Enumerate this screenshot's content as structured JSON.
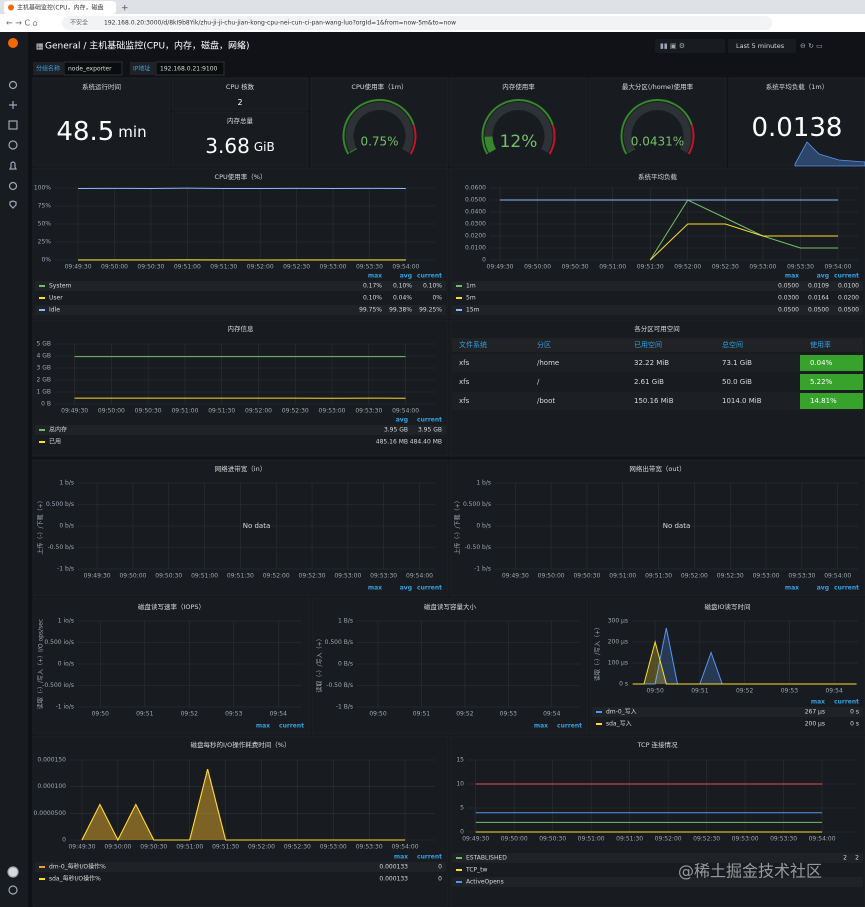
{
  "browser": {
    "tab": "主机基础监控(CPU，内存，磁盘",
    "insecure": "不安全",
    "url": "192.168.0.20:3000/d/8kI9b8Yik/zhu-ji-ji-chu-jian-kong-cpu-nei-cun-ci-pan-wang-luo?orgId=1&from=now-5m&to=now"
  },
  "nav": {
    "path": "General / 主机基础监控(CPU，内存，磁盘，网络)",
    "time_range": "Last 5 minutes"
  },
  "variables": [
    {
      "label": "分组名称",
      "value": "node_exporter"
    },
    {
      "label": "IP地址",
      "value": "192.168.0.21:9100"
    }
  ],
  "stats": [
    {
      "title": "系统运行时间",
      "value": 48.5,
      "unit": "min"
    },
    {
      "title": "CPU 核数",
      "value": 2
    },
    {
      "title": "内存总量",
      "value": 3.68,
      "unit": "GiB"
    },
    {
      "title": "系统平均负载（1m）",
      "value": 0.0138
    }
  ],
  "gauges": [
    {
      "title": "CPU使用率（1m）",
      "value": 0.75,
      "value_label": "0.75%",
      "range": [
        0,
        100
      ],
      "color": "#37872d"
    },
    {
      "title": "内存使用率",
      "value": 12,
      "value_label": "12%",
      "range": [
        0,
        100
      ],
      "color": "#37872d"
    },
    {
      "title": "最大分区(/home)使用率",
      "value": 0.0431,
      "value_label": "0.0431%",
      "range": [
        0,
        100
      ],
      "color": "#37872d"
    }
  ],
  "charts": [
    {
      "type": "line",
      "title": "CPU使用率（%）",
      "x": [
        "09:49:30",
        "09:50:00",
        "09:50:30",
        "09:51:00",
        "09:51:30",
        "09:52:00",
        "09:52:30",
        "09:53:00",
        "09:53:30",
        "09:54:00"
      ],
      "xlim": [
        "09:49:11",
        "09:54:24"
      ],
      "xticks": [
        "09:49:30",
        "09:50:00",
        "09:50:30",
        "09:51:00",
        "09:51:30",
        "09:52:00",
        "09:52:30",
        "09:53:00",
        "09:53:30",
        "09:54:00"
      ],
      "ylim": [
        0,
        100
      ],
      "yticks": [
        {
          "value": 0,
          "label": "0%"
        },
        {
          "value": 25,
          "label": "25%"
        },
        {
          "value": 50,
          "label": "50%"
        },
        {
          "value": 75,
          "label": "75%"
        },
        {
          "value": 100,
          "label": "100%"
        }
      ],
      "legend_headers": [
        "max",
        "avg",
        "current"
      ],
      "series": [
        {
          "name": "System",
          "color": "#73bf69",
          "values": [
            0.1,
            0.12,
            0.1,
            0.17,
            0.1,
            0.08,
            0.1,
            0.1,
            0.09,
            0.1
          ],
          "legend": [
            "0.17%",
            "0.10%",
            "0.10%"
          ]
        },
        {
          "name": "User",
          "color": "#fade2a",
          "values": [
            0.04,
            0.05,
            0.04,
            0.1,
            0.04,
            0.03,
            0.04,
            0.02,
            0.04,
            0
          ],
          "legend": [
            "0.10%",
            "0.04%",
            "0%"
          ]
        },
        {
          "name": "Idle",
          "color": "#8ab8ff",
          "values": [
            99.25,
            99.5,
            99.38,
            99.75,
            99.38,
            99.25,
            99.5,
            99.38,
            99.5,
            99.25
          ],
          "legend": [
            "99.75%",
            "99.38%",
            "99.25%"
          ]
        }
      ]
    },
    {
      "type": "line",
      "title": "系统平均负载",
      "x": [
        "09:49:30",
        "09:50:00",
        "09:50:30",
        "09:51:00",
        "09:51:30",
        "09:52:00",
        "09:52:30",
        "09:53:00",
        "09:53:30",
        "09:54:00"
      ],
      "xlim": [
        "09:49:22",
        "09:54:16"
      ],
      "xticks": [
        "09:49:30",
        "09:50:00",
        "09:50:30",
        "09:51:00",
        "09:51:30",
        "09:52:00",
        "09:52:30",
        "09:53:00",
        "09:53:30",
        "09:54:00"
      ],
      "ylim": [
        0,
        0.06
      ],
      "yticks": [
        0,
        {
          "value": 0.01,
          "label": "0.0100"
        },
        {
          "value": 0.02,
          "label": "0.0200"
        },
        {
          "value": 0.03,
          "label": "0.0300"
        },
        {
          "value": 0.04,
          "label": "0.0400"
        },
        {
          "value": 0.05,
          "label": "0.0500"
        },
        {
          "value": 0.06,
          "label": "0.0600"
        }
      ],
      "legend_headers": [
        "max",
        "avg",
        "current"
      ],
      "series": [
        {
          "name": "1m",
          "color": "#73bf69",
          "values": [
            null,
            null,
            null,
            null,
            0,
            0.05,
            0.035,
            0.02,
            0.01,
            0.01
          ],
          "legend": [
            "0.0500",
            "0.0109",
            "0.0100"
          ]
        },
        {
          "name": "5m",
          "color": "#fade2a",
          "values": [
            null,
            null,
            null,
            null,
            0,
            0.03,
            0.03,
            0.02,
            0.02,
            0.02
          ],
          "legend": [
            "0.0300",
            "0.0164",
            "0.0200"
          ]
        },
        {
          "name": "15m",
          "color": "#8ab8ff",
          "values": [
            0.05,
            0.05,
            0.05,
            0.05,
            0.05,
            0.05,
            0.05,
            0.05,
            0.05,
            0.05
          ],
          "legend": [
            "0.0500",
            "0.0500",
            "0.0500"
          ]
        }
      ]
    },
    {
      "type": "line",
      "title": "内存信息",
      "x": [
        "09:49:30",
        "09:50:00",
        "09:50:30",
        "09:51:00",
        "09:51:30",
        "09:52:00",
        "09:52:30",
        "09:53:00",
        "09:53:30",
        "09:54:00"
      ],
      "xlim": [
        "09:49:14",
        "09:54:24"
      ],
      "xticks": [
        "09:49:30",
        "09:50:00",
        "09:50:30",
        "09:51:00",
        "09:51:30",
        "09:52:00",
        "09:52:30",
        "09:53:00",
        "09:53:30",
        "09:54:00"
      ],
      "ylim": [
        0,
        5
      ],
      "yticks": [
        {
          "value": 0,
          "label": "0 B"
        },
        {
          "value": 1,
          "label": "1 GB"
        },
        {
          "value": 2,
          "label": "2 GB"
        },
        {
          "value": 3,
          "label": "3 GB"
        },
        {
          "value": 4,
          "label": "4 GB"
        },
        {
          "value": 5,
          "label": "5 GB"
        }
      ],
      "legend_headers": [
        "avg",
        "current"
      ],
      "series": [
        {
          "name": "总内存",
          "color": "#73bf69",
          "values": [
            3.95,
            3.95,
            3.95,
            3.95,
            3.95,
            3.95,
            3.95,
            3.95,
            3.95,
            3.95
          ],
          "legend": [
            "3.95 GB",
            "3.95 GB"
          ]
        },
        {
          "name": "已用",
          "color": "#fade2a",
          "values": [
            0.485,
            0.486,
            0.485,
            0.485,
            0.486,
            0.485,
            0.485,
            0.484,
            0.485,
            0.484
          ],
          "legend": [
            "485.16 MB",
            "484.40 MB"
          ]
        }
      ]
    },
    {
      "type": "line",
      "title": "网络进带宽（in）",
      "no_data": "No data",
      "ylabel": "上传（-）/下载（+）",
      "x": [],
      "xlim": [
        "09:49:14",
        "09:54:13"
      ],
      "xticks": [
        "09:49:30",
        "09:50:00",
        "09:50:30",
        "09:51:00",
        "09:51:30",
        "09:52:00",
        "09:52:30",
        "09:53:00",
        "09:53:30",
        "09:54:00"
      ],
      "ylim": [
        -1,
        1
      ],
      "yticks": [
        {
          "value": 1,
          "label": "1 b/s"
        },
        {
          "value": 0.5,
          "label": "0.500 b/s"
        },
        {
          "value": 0,
          "label": "0 b/s"
        },
        {
          "value": -0.5,
          "label": "-0.50 b/s"
        },
        {
          "value": -1,
          "label": "-1 b/s"
        }
      ],
      "legend_headers": [
        "max",
        "avg",
        "current"
      ],
      "series": []
    },
    {
      "type": "line",
      "title": "网络出带宽（out）",
      "no_data": "No data",
      "ylabel": "上传（-）/下载（+）",
      "x": [],
      "xlim": [
        "09:49:13",
        "09:54:17"
      ],
      "xticks": [
        "09:49:30",
        "09:50:00",
        "09:50:30",
        "09:51:00",
        "09:51:30",
        "09:52:00",
        "09:52:30",
        "09:53:00",
        "09:53:30",
        "09:54:00"
      ],
      "ylim": [
        -1,
        1
      ],
      "yticks": [
        {
          "value": 1,
          "label": "1 b/s"
        },
        {
          "value": 0.5,
          "label": "0.500 b/s"
        },
        {
          "value": 0,
          "label": "0 b/s"
        },
        {
          "value": -0.5,
          "label": "-0.50 b/s"
        },
        {
          "value": -1,
          "label": "-1 b/s"
        }
      ],
      "legend_headers": [
        "max",
        "avg",
        "current"
      ],
      "series": []
    },
    {
      "type": "line",
      "title": "磁盘读写速率（IOPS）",
      "ylabel": "读取（-）/写入（+）I/O ops/sec",
      "x": [],
      "xlim": [
        "09:49:30",
        "09:54:32"
      ],
      "xticks": [
        "09:50",
        "09:51",
        "09:52",
        "09:53",
        "09:54"
      ],
      "ylim": [
        -1,
        1
      ],
      "yticks": [
        {
          "value": 1,
          "label": "1 io/s"
        },
        {
          "value": 0.5,
          "label": "0.500 io/s"
        },
        {
          "value": 0,
          "label": "0 io/s"
        },
        {
          "value": -0.5,
          "label": "-0.500 io/s"
        },
        {
          "value": -1,
          "label": "-1 io/s"
        }
      ],
      "legend_headers": [
        "max",
        "current"
      ],
      "series": []
    },
    {
      "type": "line",
      "title": "磁盘读写容量大小",
      "ylabel": "读取（-）/写入（+）",
      "x": [],
      "xlim": [
        "09:49:31",
        "09:54:39"
      ],
      "xticks": [
        "09:50",
        "09:51",
        "09:52",
        "09:53",
        "09:54"
      ],
      "ylim": [
        -1,
        1
      ],
      "yticks": [
        {
          "value": 1,
          "label": "1 B/s"
        },
        {
          "value": 0.5,
          "label": "0.500 B/s"
        },
        {
          "value": 0,
          "label": "0 B/s"
        },
        {
          "value": -0.5,
          "label": "-0.50 B/s"
        },
        {
          "value": -1,
          "label": "-1 B/s"
        }
      ],
      "legend_headers": [
        "max",
        "current"
      ],
      "series": []
    },
    {
      "type": "line",
      "title": "磁盘IO读写时间",
      "ylabel": "读取（-）/写入（+）",
      "fill": true,
      "x": [
        "09:49:30",
        "09:49:45",
        "09:50:00",
        "09:50:15",
        "09:50:30",
        "09:50:45",
        "09:51:00",
        "09:51:15",
        "09:51:30",
        "09:51:45",
        "09:52:00",
        "09:52:15",
        "09:52:30",
        "09:52:45",
        "09:53:00",
        "09:53:15",
        "09:53:30",
        "09:53:45",
        "09:54:00",
        "09:54:15",
        "09:54:30"
      ],
      "xlim": [
        "09:49:29",
        "09:54:32"
      ],
      "xticks": [
        "09:50",
        "09:51",
        "09:52",
        "09:53",
        "09:54"
      ],
      "ylim": [
        0,
        300
      ],
      "yticks": [
        {
          "value": 0,
          "label": "0 s"
        },
        {
          "value": 100,
          "label": "100 µs"
        },
        {
          "value": 200,
          "label": "200 µs"
        },
        {
          "value": 300,
          "label": "300 µs"
        }
      ],
      "legend_headers": [
        "max",
        "current"
      ],
      "series": [
        {
          "name": "dm-0_写入",
          "color": "#5794f2",
          "values": [
            0,
            0,
            0,
            267,
            0,
            0,
            0,
            150,
            0,
            0,
            0,
            0,
            0,
            0,
            0,
            0,
            0,
            0,
            0,
            0,
            0
          ],
          "legend": [
            "267 µs",
            "0 s"
          ]
        },
        {
          "name": "sda_写入",
          "color": "#fade2a",
          "values": [
            0,
            0,
            200,
            0,
            0,
            0,
            0,
            0,
            0,
            0,
            0,
            0,
            0,
            0,
            0,
            0,
            0,
            0,
            0,
            0,
            0
          ],
          "legend": [
            "200 µs",
            "0 s"
          ]
        }
      ]
    },
    {
      "type": "line",
      "title": "磁盘每秒的I/O操作耗费时间（%）",
      "fill": true,
      "x": [
        "09:49:30",
        "09:49:45",
        "09:50:00",
        "09:50:15",
        "09:50:30",
        "09:50:45",
        "09:51:00",
        "09:51:15",
        "09:51:30",
        "09:51:45",
        "09:52:00",
        "09:52:15",
        "09:52:30",
        "09:52:45",
        "09:53:00",
        "09:53:15",
        "09:53:30",
        "09:53:45",
        "09:54:00"
      ],
      "xlim": [
        "09:49:20",
        "09:54:25"
      ],
      "xticks": [
        "09:49:30",
        "09:50:00",
        "09:50:30",
        "09:51:00",
        "09:51:30",
        "09:52:00",
        "09:52:30",
        "09:53:00",
        "09:53:30",
        "09:54:00"
      ],
      "ylim": [
        0,
        0.00015
      ],
      "yticks": [
        0,
        {
          "value": 5e-05,
          "label": "0.0000500"
        },
        {
          "value": 0.0001,
          "label": "0.000100"
        },
        {
          "value": 0.00015,
          "label": "0.000150"
        }
      ],
      "legend_headers": [
        "max",
        "current"
      ],
      "series": [
        {
          "name": "dm-0_每秒I/O操作%",
          "color": "#ff9830",
          "values": [
            0,
            6.67e-05,
            0,
            6.67e-05,
            0,
            0,
            0,
            0.000133,
            0,
            0,
            0,
            0,
            0,
            0,
            0,
            0,
            0,
            0,
            0
          ],
          "legend": [
            "0.000133",
            "0"
          ]
        },
        {
          "name": "sda_每秒I/O操作%",
          "color": "#fade2a",
          "values": [
            0,
            6.67e-05,
            0,
            6.67e-05,
            0,
            0,
            0,
            0.000133,
            0,
            0,
            0,
            0,
            0,
            0,
            0,
            0,
            0,
            0,
            0
          ],
          "legend": [
            "0.000133",
            "0"
          ]
        }
      ]
    },
    {
      "type": "line",
      "title": "TCP 连接情况",
      "x": [
        "09:49:30",
        "09:50:00",
        "09:50:30",
        "09:51:00",
        "09:51:30",
        "09:52:00",
        "09:52:30",
        "09:53:00",
        "09:53:30",
        "09:54:00"
      ],
      "xlim": [
        "09:49:24",
        "09:54:28"
      ],
      "xticks": [
        "09:49:30",
        "09:50:00",
        "09:50:30",
        "09:51:00",
        "09:51:30",
        "09:52:00",
        "09:52:30",
        "09:53:00",
        "09:53:30",
        "09:54:00"
      ],
      "ylim": [
        0,
        15
      ],
      "yticks": [
        0,
        5,
        10,
        15
      ],
      "legend_headers": [],
      "series": [
        {
          "name": "ESTABLISHED",
          "color": "#73bf69",
          "values": [
            2,
            2,
            2,
            2,
            2,
            2,
            2,
            2,
            2,
            2
          ],
          "legend": [
            "2",
            "2"
          ]
        },
        {
          "name": "TCP_tw",
          "color": "#fade2a",
          "values": [
            0,
            0,
            0,
            0,
            0,
            0,
            0,
            0,
            0,
            0
          ],
          "legend": []
        },
        {
          "name": "ActiveOpens",
          "color": "#5794f2",
          "values": [
            4,
            4,
            4,
            4,
            4,
            4,
            4,
            4,
            4,
            4
          ],
          "legend": []
        },
        {
          "color": "#f2495c",
          "values": [
            10,
            10,
            10,
            10,
            10,
            10,
            10,
            10,
            10,
            10
          ]
        }
      ]
    }
  ],
  "table": {
    "title": "各分区可用空间",
    "headers": [
      "文件系统",
      "分区",
      "已用空间",
      "总空间",
      "使用率"
    ],
    "rows": [
      [
        "xfs",
        "/home",
        "32.22 MiB",
        "73.1 GiB",
        "0.04%"
      ],
      [
        "xfs",
        "/",
        "2.61 GiB",
        "50.0 GiB",
        "5.22%"
      ],
      [
        "xfs",
        "/boot",
        "150.16 MiB",
        "1014.0 MiB",
        "14.81%"
      ]
    ]
  },
  "watermark": "@稀土掘金技术社区"
}
